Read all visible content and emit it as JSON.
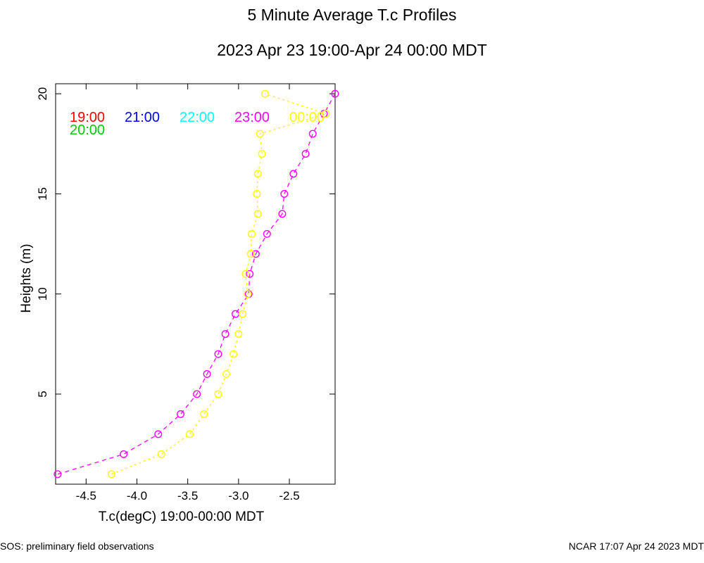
{
  "chart_data": {
    "type": "line",
    "title": "5 Minute Average T.c Profiles",
    "subtitle": "2023 Apr 23 19:00-Apr 24 00:00 MDT",
    "xlabel": "T.c(degC) 19:00-00:00 MDT",
    "ylabel": "Heights (m)",
    "xlim": [
      -4.8,
      -2.05
    ],
    "ylim": [
      0.5,
      20.5
    ],
    "xticks": [
      -4.5,
      -4.0,
      -3.5,
      -3.0,
      -2.5
    ],
    "xtick_labels": [
      "-4.5",
      "-4.0",
      "-3.5",
      "-3.0",
      "-2.5"
    ],
    "yticks": [
      5,
      10,
      15,
      20
    ],
    "ytick_labels": [
      "5",
      "10",
      "15",
      "20"
    ],
    "grid": false,
    "legend": [
      {
        "label": "19:00",
        "color": "#ff0000"
      },
      {
        "label": "20:00",
        "color": "#00cc00"
      },
      {
        "label": "21:00",
        "color": "#0000ff"
      },
      {
        "label": "22:00",
        "color": "#00ffff"
      },
      {
        "label": "23:00",
        "color": "#ff00ff"
      },
      {
        "label": "00:00",
        "color": "#ffff00"
      }
    ],
    "series": [
      {
        "name": "23:00",
        "color": "#ff00ff",
        "points": [
          [
            -4.78,
            1
          ],
          [
            -4.13,
            2
          ],
          [
            -3.79,
            3
          ],
          [
            -3.57,
            4
          ],
          [
            -3.41,
            5
          ],
          [
            -3.31,
            6
          ],
          [
            -3.2,
            7
          ],
          [
            -3.13,
            8
          ],
          [
            -3.03,
            9
          ],
          [
            -2.9,
            10
          ],
          [
            -2.89,
            11
          ],
          [
            -2.83,
            12
          ],
          [
            -2.72,
            13
          ],
          [
            -2.57,
            14
          ],
          [
            -2.55,
            15
          ],
          [
            -2.46,
            16
          ],
          [
            -2.34,
            17
          ],
          [
            -2.27,
            18
          ],
          [
            -2.16,
            19
          ],
          [
            -2.05,
            20
          ]
        ]
      },
      {
        "name": "00:00",
        "color": "#ffff00",
        "points": [
          [
            -4.25,
            1
          ],
          [
            -3.76,
            2
          ],
          [
            -3.48,
            3
          ],
          [
            -3.34,
            4
          ],
          [
            -3.2,
            5
          ],
          [
            -3.12,
            6
          ],
          [
            -3.05,
            7
          ],
          [
            -3.0,
            8
          ],
          [
            -2.96,
            9
          ],
          [
            -2.91,
            10
          ],
          [
            -2.93,
            11
          ],
          [
            -2.88,
            12
          ],
          [
            -2.87,
            13
          ],
          [
            -2.81,
            14
          ],
          [
            -2.82,
            15
          ],
          [
            -2.81,
            16
          ],
          [
            -2.77,
            17
          ],
          [
            -2.79,
            18
          ],
          [
            -2.14,
            19
          ],
          [
            -2.74,
            20
          ]
        ]
      }
    ]
  },
  "footer": {
    "left": "SOS: preliminary field observations",
    "right": "NCAR 17:07 Apr 24 2023 MDT"
  }
}
